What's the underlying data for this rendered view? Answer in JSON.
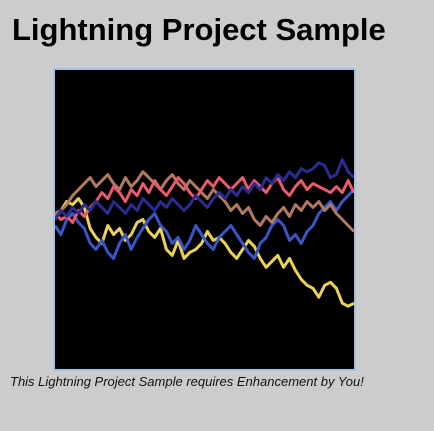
{
  "page": {
    "title": "Lightning Project Sample",
    "caption": "This Lightning Project Sample requires Enhancement by You!"
  },
  "canvas": {
    "background": "#000000",
    "border_color": "#9ec3e6",
    "lines": [
      {
        "color": "#e9d255",
        "points": [
          0.5,
          0.47,
          0.44,
          0.45,
          0.43,
          0.46,
          0.53,
          0.56,
          0.58,
          0.52,
          0.55,
          0.53,
          0.57,
          0.55,
          0.51,
          0.5,
          0.54,
          0.56,
          0.53,
          0.6,
          0.62,
          0.57,
          0.63,
          0.61,
          0.6,
          0.58,
          0.54,
          0.57,
          0.56,
          0.58,
          0.61,
          0.63,
          0.6,
          0.57,
          0.59,
          0.63,
          0.66,
          0.64,
          0.62,
          0.66,
          0.63,
          0.67,
          0.7,
          0.72,
          0.73,
          0.76,
          0.72,
          0.71,
          0.73,
          0.78,
          0.79,
          0.78
        ]
      },
      {
        "color": "#3956c4",
        "points": [
          0.52,
          0.55,
          0.5,
          0.48,
          0.51,
          0.53,
          0.58,
          0.6,
          0.57,
          0.61,
          0.63,
          0.58,
          0.55,
          0.6,
          0.56,
          0.53,
          0.5,
          0.48,
          0.52,
          0.54,
          0.58,
          0.56,
          0.6,
          0.57,
          0.52,
          0.55,
          0.58,
          0.6,
          0.56,
          0.54,
          0.52,
          0.55,
          0.58,
          0.61,
          0.63,
          0.58,
          0.56,
          0.52,
          0.5,
          0.52,
          0.57,
          0.55,
          0.58,
          0.54,
          0.52,
          0.48,
          0.46,
          0.44,
          0.47,
          0.44,
          0.42,
          0.4
        ]
      },
      {
        "color": "#b07a60",
        "points": [
          0.48,
          0.47,
          0.45,
          0.42,
          0.4,
          0.38,
          0.36,
          0.39,
          0.37,
          0.35,
          0.38,
          0.4,
          0.36,
          0.39,
          0.37,
          0.34,
          0.36,
          0.38,
          0.4,
          0.37,
          0.35,
          0.38,
          0.4,
          0.37,
          0.39,
          0.41,
          0.43,
          0.4,
          0.42,
          0.44,
          0.47,
          0.45,
          0.48,
          0.46,
          0.5,
          0.52,
          0.49,
          0.51,
          0.48,
          0.46,
          0.49,
          0.45,
          0.47,
          0.44,
          0.46,
          0.44,
          0.47,
          0.45,
          0.48,
          0.5,
          0.52,
          0.54
        ]
      },
      {
        "color": "#e85a6c",
        "points": [
          0.48,
          0.5,
          0.49,
          0.51,
          0.47,
          0.49,
          0.46,
          0.44,
          0.41,
          0.43,
          0.39,
          0.41,
          0.44,
          0.4,
          0.42,
          0.38,
          0.41,
          0.37,
          0.4,
          0.42,
          0.39,
          0.36,
          0.38,
          0.41,
          0.43,
          0.4,
          0.37,
          0.39,
          0.36,
          0.38,
          0.4,
          0.38,
          0.36,
          0.4,
          0.37,
          0.39,
          0.41,
          0.38,
          0.36,
          0.4,
          0.42,
          0.39,
          0.37,
          0.4,
          0.38,
          0.39,
          0.4,
          0.41,
          0.39,
          0.41,
          0.37,
          0.41
        ]
      },
      {
        "color": "#2c2b8f",
        "points": [
          0.5,
          0.47,
          0.49,
          0.46,
          0.48,
          0.45,
          0.47,
          0.44,
          0.46,
          0.48,
          0.44,
          0.46,
          0.48,
          0.45,
          0.47,
          0.43,
          0.45,
          0.47,
          0.44,
          0.46,
          0.43,
          0.45,
          0.47,
          0.45,
          0.42,
          0.44,
          0.46,
          0.43,
          0.41,
          0.43,
          0.4,
          0.42,
          0.39,
          0.41,
          0.38,
          0.4,
          0.36,
          0.38,
          0.35,
          0.37,
          0.34,
          0.36,
          0.33,
          0.34,
          0.33,
          0.31,
          0.32,
          0.36,
          0.35,
          0.3,
          0.34,
          0.36
        ]
      }
    ]
  }
}
